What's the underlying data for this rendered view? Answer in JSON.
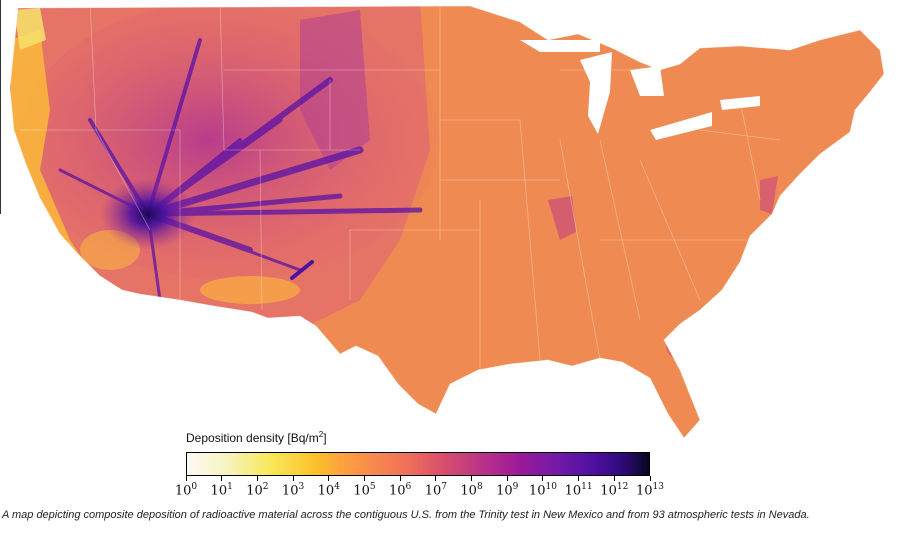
{
  "legend": {
    "title_main": "Deposition density [Bq/m",
    "title_sup": "2",
    "title_end": "]",
    "tick_base": "10",
    "ticks": [
      "0",
      "1",
      "2",
      "3",
      "4",
      "5",
      "6",
      "7",
      "8",
      "9",
      "10",
      "11",
      "12",
      "13"
    ]
  },
  "caption": "A map depicting composite deposition of radioactive material across the contiguous U.S. from the Trinity test in New Mexico and from 93 atmospheric tests in Nevada.",
  "colors": {
    "base_fill": "#ef8a52",
    "west_fill": "#e5686a",
    "plume": "#5a12a6",
    "ground_zero": "#1b0855",
    "coast_yellow": "#fbc53a"
  }
}
